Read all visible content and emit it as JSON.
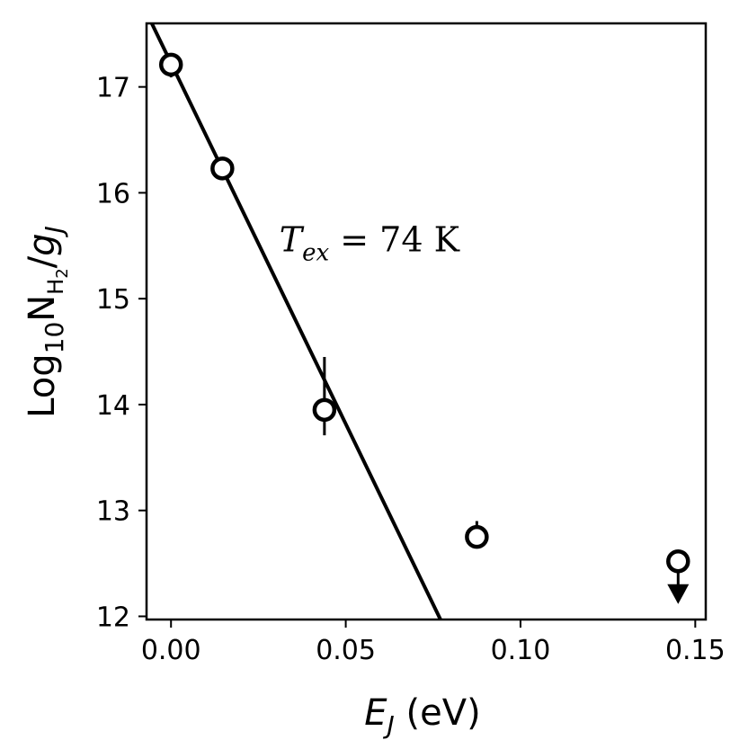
{
  "chart_data": {
    "type": "scatter",
    "xlabel": {
      "main": "E",
      "sub": "J",
      "unit": " (eV)"
    },
    "ylabel": {
      "prefix": "Log",
      "sub10": "10",
      "N": "N",
      "subH": "H",
      "sub2": "2",
      "slash": "/",
      "g": "g",
      "subJ": "J"
    },
    "xlim": [
      -0.007,
      0.153
    ],
    "ylim": [
      11.97,
      17.6
    ],
    "x_ticks": [
      {
        "value": 0.0,
        "label": "0.00"
      },
      {
        "value": 0.05,
        "label": "0.05"
      },
      {
        "value": 0.1,
        "label": "0.10"
      },
      {
        "value": 0.15,
        "label": "0.15"
      }
    ],
    "y_ticks": [
      {
        "value": 12,
        "label": "12"
      },
      {
        "value": 13,
        "label": "13"
      },
      {
        "value": 14,
        "label": "14"
      },
      {
        "value": 15,
        "label": "15"
      },
      {
        "value": 16,
        "label": "16"
      },
      {
        "value": 17,
        "label": "17"
      }
    ],
    "points": [
      {
        "x": 0.0,
        "y": 17.21,
        "err_lo": 17.09,
        "err_hi": 17.31,
        "upper_limit": false
      },
      {
        "x": 0.0147,
        "y": 16.23,
        "err_lo": 16.18,
        "err_hi": 16.28,
        "upper_limit": false
      },
      {
        "x": 0.0439,
        "y": 13.95,
        "err_lo": 13.71,
        "err_hi": 14.45,
        "upper_limit": false
      },
      {
        "x": 0.0875,
        "y": 12.75,
        "err_lo": 12.71,
        "err_hi": 12.9,
        "upper_limit": false
      },
      {
        "x": 0.1451,
        "y": 12.52,
        "err_lo": 12.15,
        "err_hi": 12.52,
        "upper_limit": true
      }
    ],
    "fit_line": {
      "x": [
        -0.0055,
        0.0771
      ],
      "y": [
        17.6,
        11.97
      ]
    },
    "annotation": {
      "T": "T",
      "sub": "ex",
      "rest": " = 74 K",
      "x": 0.031,
      "y": 15.55
    },
    "grid": false,
    "legend": "none"
  }
}
